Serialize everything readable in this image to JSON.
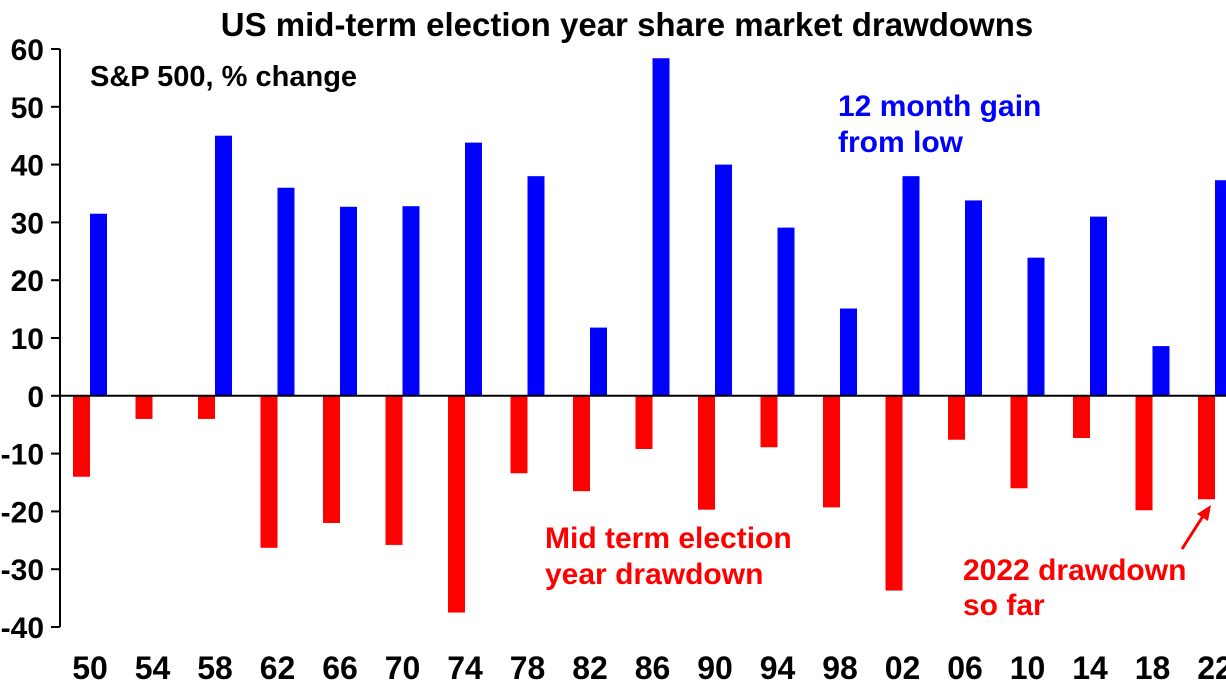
{
  "chart_data": {
    "type": "bar",
    "title": "US mid-term election year share market drawdowns",
    "subtitle": "S&P 500, % change",
    "categories": [
      "50",
      "54",
      "58",
      "62",
      "66",
      "70",
      "74",
      "78",
      "82",
      "86",
      "90",
      "94",
      "98",
      "02",
      "06",
      "10",
      "14",
      "18",
      "22"
    ],
    "series": [
      {
        "name": "Mid term election year drawdown",
        "color": "#ff0000",
        "values": [
          -14,
          -4,
          -4,
          -26.3,
          -22,
          -25.8,
          -37.5,
          -13.4,
          -16.5,
          -9.2,
          -19.7,
          -8.9,
          -19.3,
          -33.7,
          -7.6,
          -16,
          -7.3,
          -19.8,
          -17.9
        ]
      },
      {
        "name": "12 month gain from low",
        "color": "#0000ff",
        "values": [
          31.5,
          null,
          45,
          36,
          32.7,
          32.8,
          43.8,
          38,
          11.8,
          58.4,
          40,
          29.1,
          15.1,
          38,
          33.8,
          23.9,
          31,
          8.6,
          37.3
        ]
      }
    ],
    "ylim": [
      -40,
      60
    ],
    "ytick_labels": [
      "-40",
      "-30",
      "-20",
      "-10",
      "0",
      "10",
      "20",
      "30",
      "40",
      "50",
      "60"
    ],
    "annotations": [
      {
        "text": "12 month gain",
        "color": "#0000ff"
      },
      {
        "text": "from low",
        "color": "#0000ff"
      },
      {
        "text": "Mid term election",
        "color": "#ff0000"
      },
      {
        "text": "year drawdown",
        "color": "#ff0000"
      },
      {
        "text": "2022 drawdown",
        "color": "#ff0000"
      },
      {
        "text": "so far",
        "color": "#ff0000"
      }
    ],
    "grid": false
  }
}
